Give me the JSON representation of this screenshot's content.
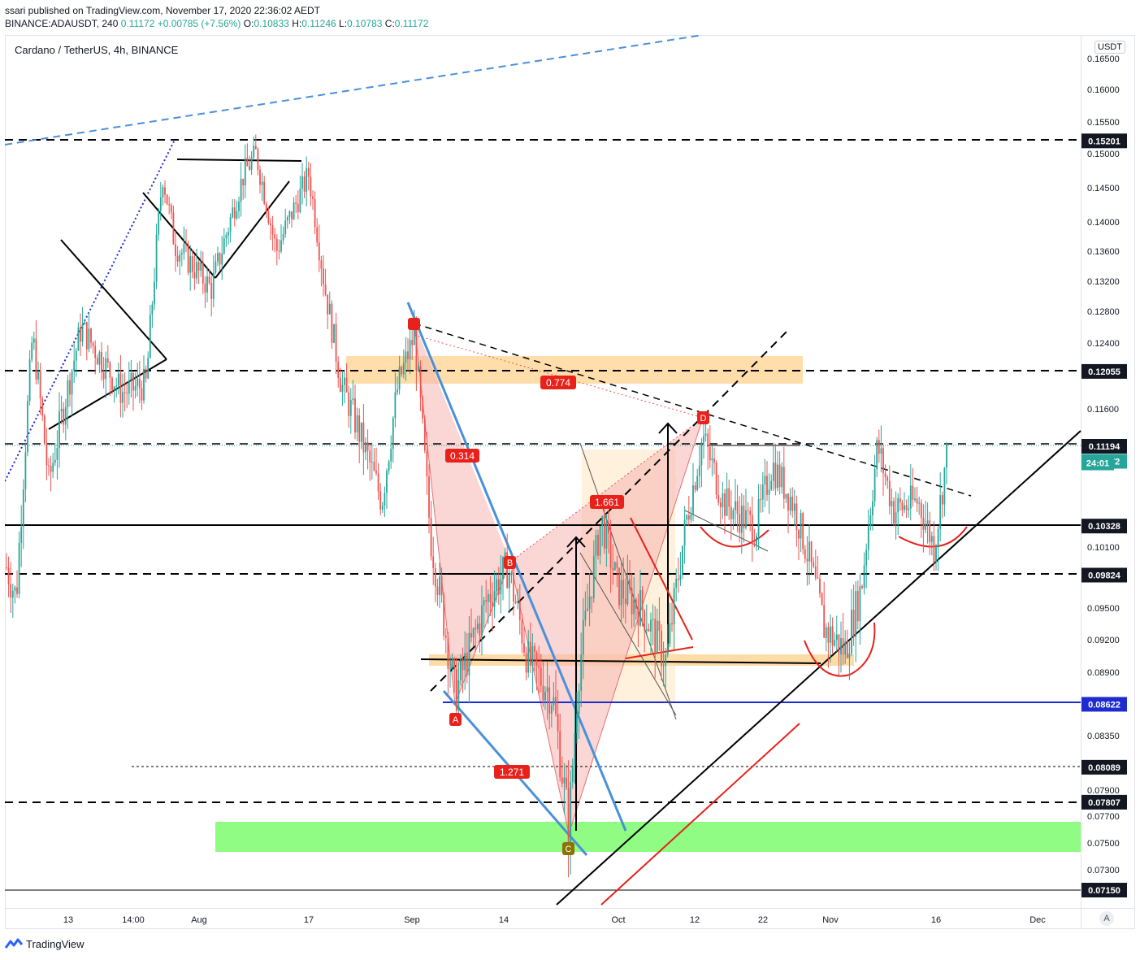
{
  "header": {
    "published": "ssari published on TradingView.com, November 17, 2020 22:36:02 AEDT",
    "symbol_line": "BINANCE:ADAUSDT, 240",
    "last": "0.11172",
    "change": "+0.00785 (+7.56%)",
    "o_label": "O:",
    "o": "0.10833",
    "h_label": "H:",
    "h": "0.11246",
    "l_label": "L:",
    "l": "0.10783",
    "c_label": "C:",
    "c": "0.11172"
  },
  "chart_title": "Cardano / TetherUS, 4h, BINANCE",
  "currency": "USDT",
  "auto_button": "A",
  "brand": "TradingView",
  "colors": {
    "up": "#26a69a",
    "down": "#ef5350",
    "zone_orange": "#ffcc80",
    "zone_green": "#7cfc6e",
    "pattern_fill": "#f7c6c4",
    "trend_blue": "#4a90d9",
    "accent_red": "#e8221b"
  },
  "chart_data": {
    "type": "candlestick",
    "title": "Cardano / TetherUS, 4h, BINANCE",
    "y_axis_ticks": [
      "0.16500",
      "0.16000",
      "0.15500",
      "0.15000",
      "0.14500",
      "0.14000",
      "0.13600",
      "0.13200",
      "0.12800",
      "0.12400",
      "0.11600",
      "0.10100",
      "0.09500",
      "0.09200",
      "0.08900",
      "0.08350",
      "0.07900",
      "0.07700",
      "0.07500",
      "0.07300"
    ],
    "x_axis_ticks": [
      "13",
      "14:00",
      "Aug",
      "17",
      "Sep",
      "14",
      "Oct",
      "12",
      "22",
      "Nov",
      "16",
      "Dec"
    ],
    "price_labels": [
      {
        "value": "0.15201",
        "style": "dark"
      },
      {
        "value": "0.12055",
        "style": "dark"
      },
      {
        "value": "0.11194",
        "style": "dark"
      },
      {
        "value": "0.11172",
        "style": "current"
      },
      {
        "value": "24:01",
        "style": "countdown"
      },
      {
        "value": "0.10328",
        "style": "dark"
      },
      {
        "value": "0.09824",
        "style": "dark"
      },
      {
        "value": "0.08622",
        "style": "blue"
      },
      {
        "value": "0.08089",
        "style": "dark"
      },
      {
        "value": "0.07807",
        "style": "dark"
      },
      {
        "value": "0.07150",
        "style": "dark"
      }
    ],
    "horizontal_levels": [
      0.15201,
      0.12055,
      0.11194,
      0.10328,
      0.09824,
      0.08622,
      0.08089,
      0.07807,
      0.0715
    ],
    "pattern_points": [
      "A",
      "B",
      "C",
      "D"
    ],
    "fib_labels": [
      "0.774",
      "0.314",
      "1.661",
      "1.271"
    ],
    "last_price": 0.11172,
    "countdown": "24:01"
  }
}
